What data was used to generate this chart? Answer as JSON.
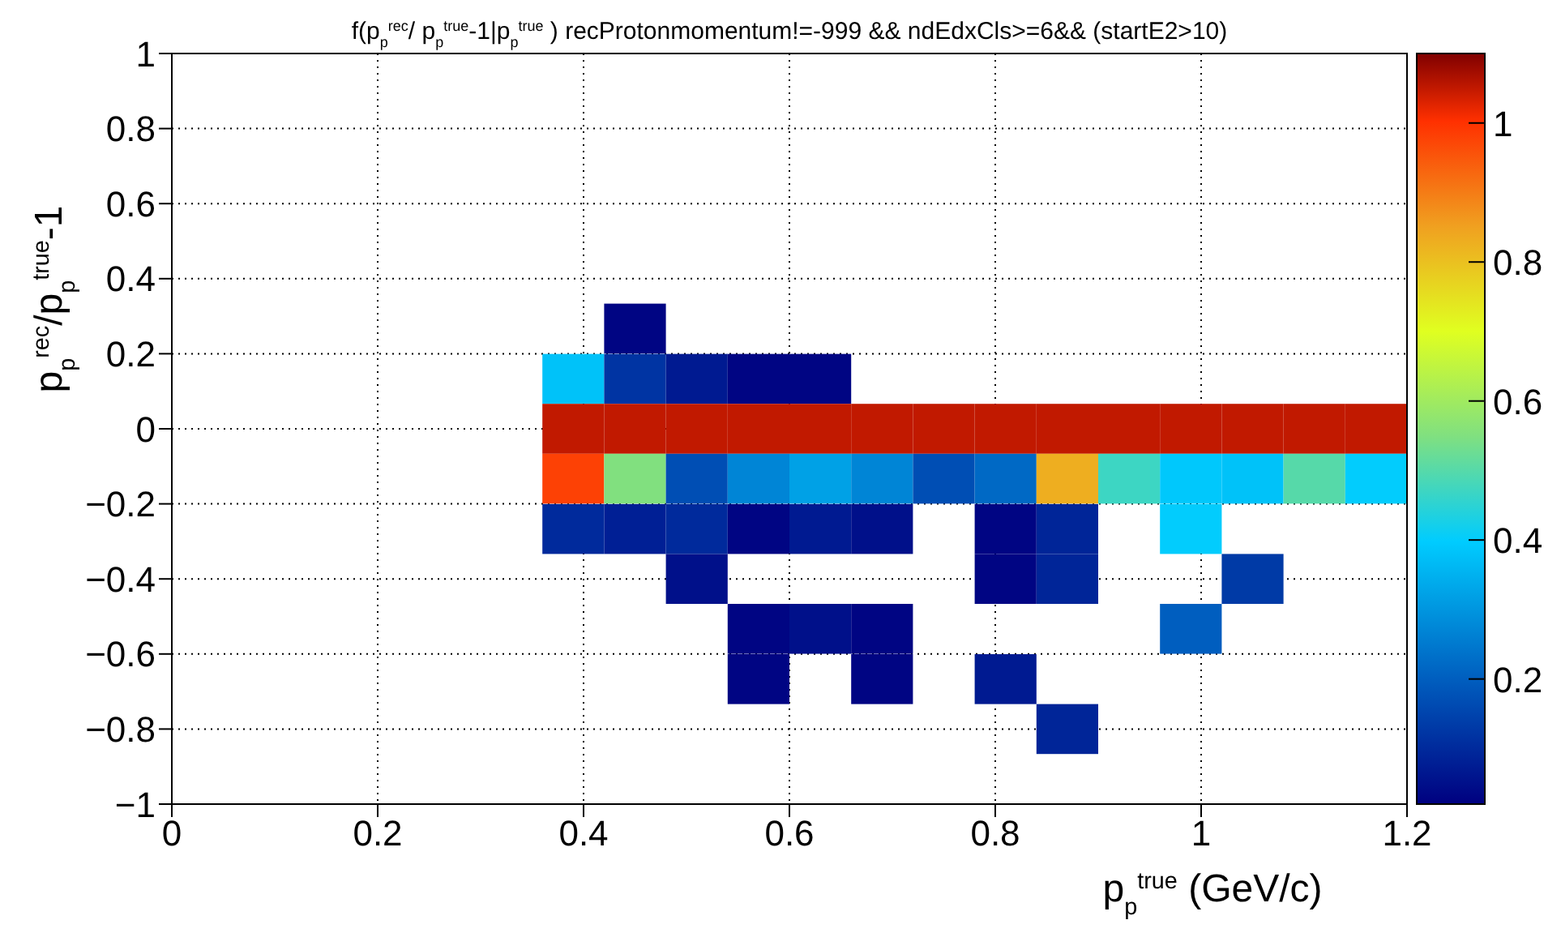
{
  "chart_data": {
    "type": "scatter",
    "title": "f(p$_{p}$$^{rec}$/ p$_{p}$$^{true}$-1|p$_{p}$$^{true}$ ) recProtonmomentum!=-999 && ndEdxCls>=6&& (startE2>10)",
    "xlabel": "p$_{p}$$^{true}$ (GeV/c)",
    "ylabel": "p$_{p}$$^{rec}$/p$_{p}$$^{true}$-1",
    "marker": "square",
    "x": [
      0.45,
      0.39,
      0.45,
      0.51,
      0.57,
      0.63,
      0.39,
      0.45,
      0.51,
      0.57,
      0.63,
      0.69,
      0.75,
      0.81,
      0.87,
      0.93,
      0.99,
      1.05,
      1.11,
      1.17,
      0.39,
      0.45,
      0.51,
      0.57,
      0.63,
      0.69,
      0.75,
      0.81,
      0.87,
      0.93,
      0.99,
      1.05,
      1.11,
      1.17,
      0.39,
      0.45,
      0.51,
      0.57,
      0.63,
      0.69,
      0.81,
      0.87,
      0.99,
      0.51,
      0.81,
      0.87,
      1.05,
      0.57,
      0.63,
      0.69,
      0.99,
      0.57,
      0.69,
      0.81,
      0.87
    ],
    "values": [
      0.267,
      0.133,
      0.133,
      0.133,
      0.133,
      0.133,
      0,
      0,
      0,
      0,
      0,
      0,
      0,
      0,
      0,
      0,
      0,
      0,
      0,
      0,
      -0.133,
      -0.133,
      -0.133,
      -0.133,
      -0.133,
      -0.133,
      -0.133,
      -0.133,
      -0.133,
      -0.133,
      -0.133,
      -0.133,
      -0.133,
      -0.133,
      -0.267,
      -0.267,
      -0.267,
      -0.267,
      -0.267,
      -0.267,
      -0.267,
      -0.267,
      -0.267,
      -0.4,
      -0.4,
      -0.4,
      -0.4,
      -0.533,
      -0.533,
      -0.533,
      -0.533,
      -0.667,
      -0.667,
      -0.667,
      -0.8
    ],
    "cvalues": [
      0.03,
      0.38,
      0.12,
      0.07,
      0.03,
      0.03,
      1.05,
      1.05,
      1.05,
      1.05,
      1.05,
      1.05,
      1.05,
      1.05,
      1.05,
      1.05,
      1.05,
      1.05,
      1.05,
      1.05,
      0.98,
      0.55,
      0.17,
      0.27,
      0.32,
      0.27,
      0.17,
      0.22,
      0.83,
      0.47,
      0.39,
      0.38,
      0.5,
      0.4,
      0.1,
      0.08,
      0.1,
      0.03,
      0.07,
      0.05,
      0.03,
      0.09,
      0.4,
      0.05,
      0.03,
      0.09,
      0.13,
      0.03,
      0.05,
      0.03,
      0.2,
      0.03,
      0.03,
      0.07,
      0.09
    ],
    "xlim": [
      0,
      1.2
    ],
    "xticks": [
      0,
      0.2,
      0.4,
      0.6,
      0.8,
      1,
      1.2
    ],
    "ylim": [
      -1,
      1
    ],
    "yticks": [
      {
        "value": -1,
        "label": "−1"
      },
      {
        "value": -0.8,
        "label": "−0.8"
      },
      {
        "value": -0.6,
        "label": "−0.6"
      },
      {
        "value": -0.4,
        "label": "−0.4"
      },
      {
        "value": -0.2,
        "label": "−0.2"
      },
      0,
      0.2,
      0.4,
      0.6,
      0.8,
      1
    ],
    "grid": true,
    "clim": [
      0.02,
      1.1
    ],
    "cticks": [
      0.2,
      0.4,
      0.6,
      0.8,
      1
    ]
  }
}
